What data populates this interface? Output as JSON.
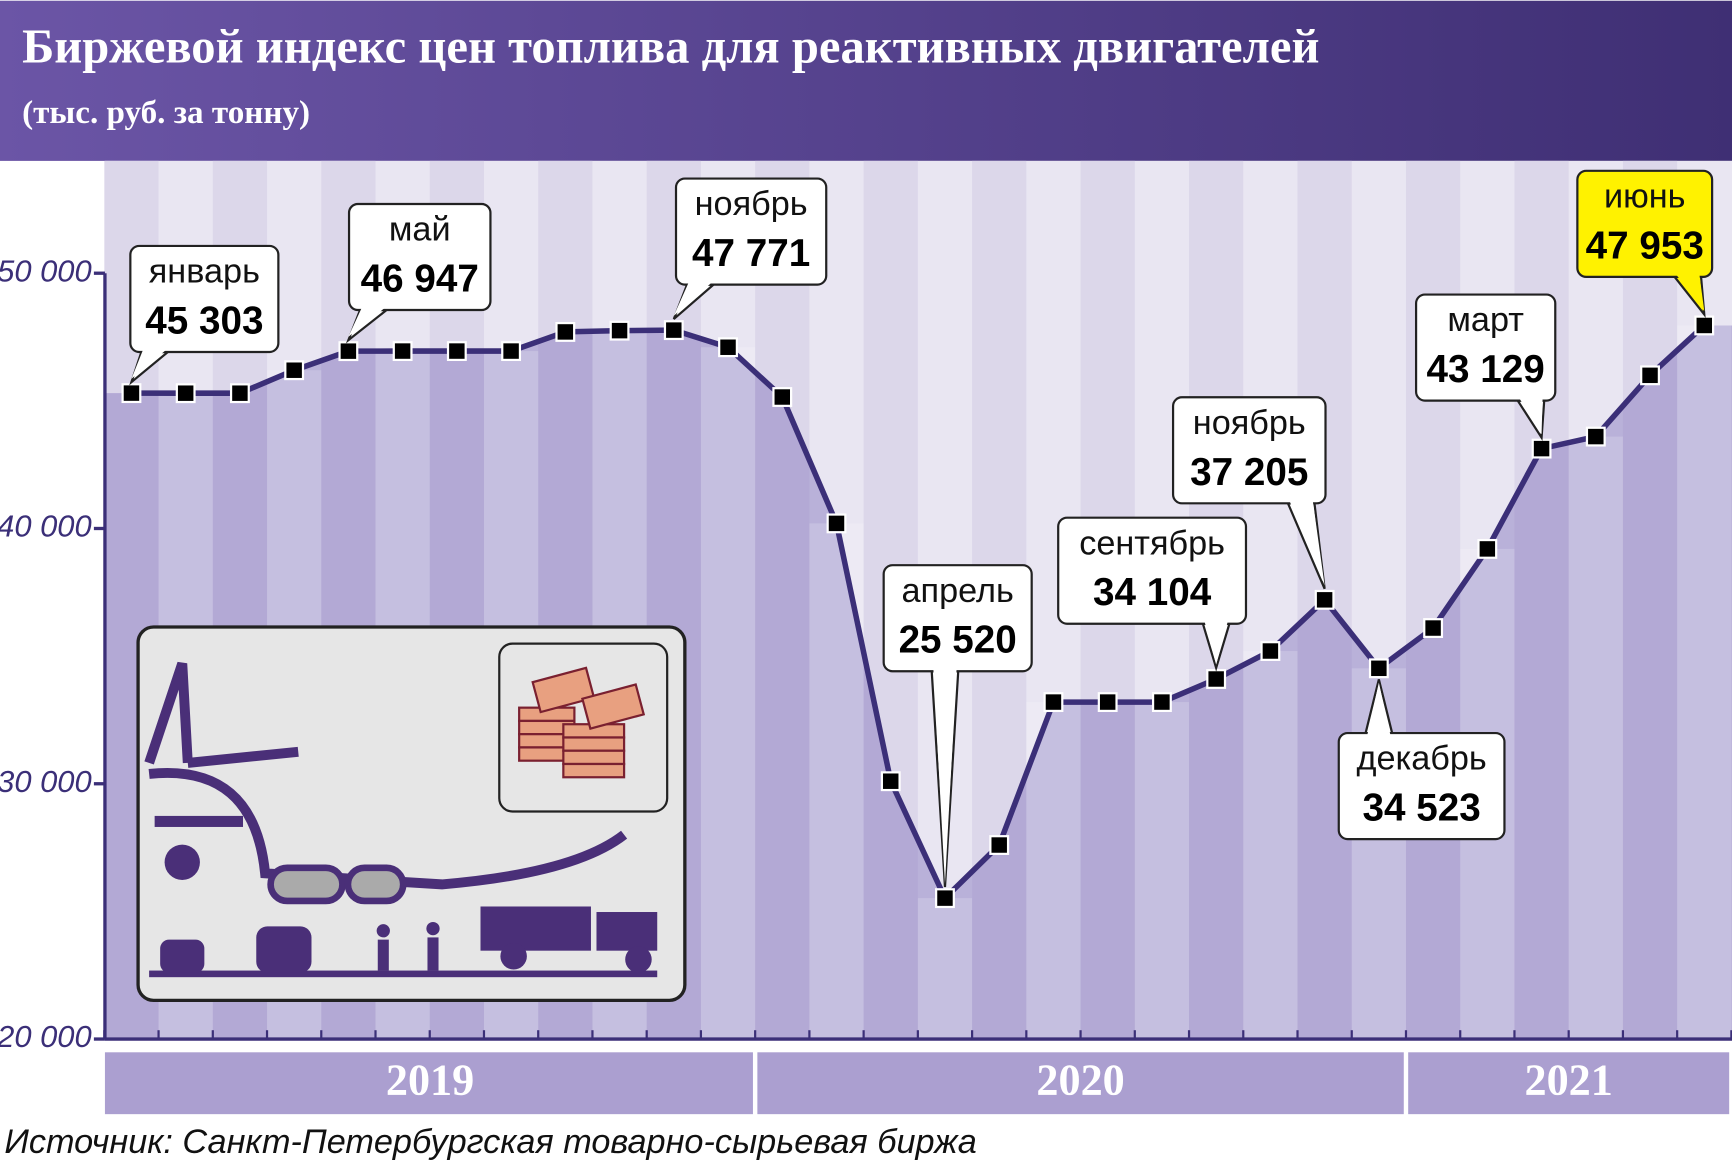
{
  "chart_data": {
    "type": "line",
    "title": "Биржевой индекс цен топлива для реактивных двигателей",
    "subtitle": "(тыс. руб. за тонну)",
    "source": "Источник: Санкт-Петербургская товарно-сырьевая биржа",
    "years": [
      "2019",
      "2020",
      "2021"
    ],
    "categories": [
      "январь",
      null,
      null,
      null,
      "май",
      null,
      null,
      null,
      null,
      null,
      "ноябрь",
      null,
      null,
      null,
      null,
      "апрель",
      null,
      null,
      null,
      null,
      "сентябрь",
      null,
      "ноябрь",
      "декабрь",
      null,
      null,
      "март",
      null,
      null,
      "июнь"
    ],
    "values": [
      45303,
      45300,
      45300,
      46200,
      46947,
      46950,
      46950,
      46950,
      47700,
      47750,
      47771,
      47100,
      45150,
      40200,
      30100,
      25520,
      27600,
      33200,
      33200,
      33200,
      34104,
      35200,
      37205,
      34523,
      36100,
      39200,
      43129,
      43600,
      46000,
      47953
    ],
    "value_labels": [
      "45 303",
      null,
      null,
      null,
      "46 947",
      null,
      null,
      null,
      null,
      null,
      "47 771",
      null,
      null,
      null,
      null,
      "25 520",
      null,
      null,
      null,
      null,
      "34 104",
      null,
      "37 205",
      "34 523",
      null,
      null,
      "43 129",
      null,
      null,
      "47 953"
    ],
    "color": "#3b2f78",
    "highlight_color": "#fff200",
    "ylim": [
      20000,
      54400
    ],
    "yticks": [
      {
        "value": 20000,
        "label": "20 000"
      },
      {
        "value": 30000,
        "label": "30 000"
      },
      {
        "value": 40000,
        "label": "40 000"
      },
      {
        "value": 50000,
        "label": "50 000"
      }
    ]
  }
}
